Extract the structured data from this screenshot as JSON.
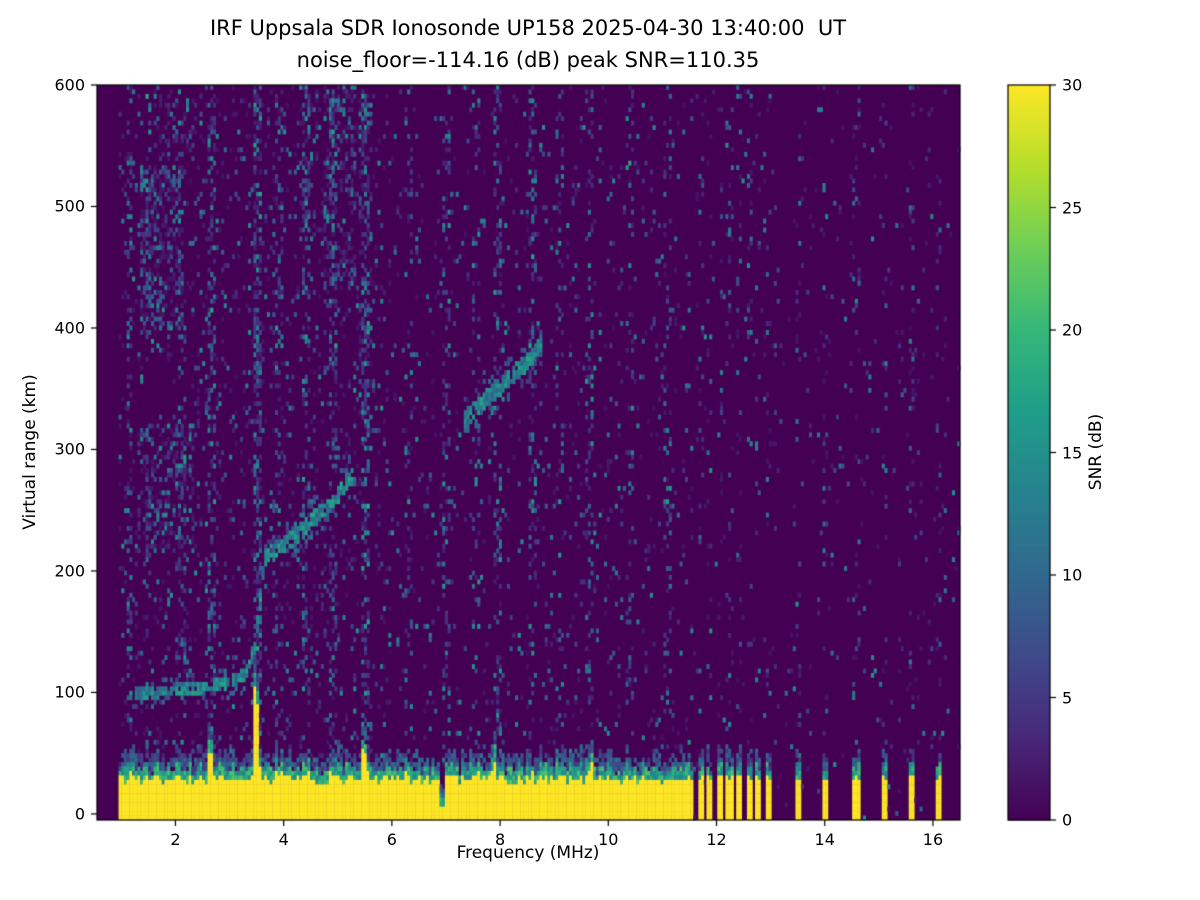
{
  "figure": {
    "station_label": "IRF Uppsala SDR Ionosonde",
    "station_id": "UP158",
    "timestamp_ut": "2025-04-30 13:40:00",
    "noise_floor_db": -114.16,
    "peak_snr_db": 110.35
  },
  "chart_data": {
    "type": "heatmap",
    "title_line1": "IRF Uppsala SDR Ionosonde UP158 2025-04-30 13:40:00  UT",
    "title_line2": "noise_floor=-114.16 (dB) peak SNR=110.35",
    "xlabel": "Frequency (MHz)",
    "ylabel": "Virtual range (km)",
    "xlim": [
      0.55,
      16.5
    ],
    "ylim": [
      -5,
      600
    ],
    "xticks": [
      2,
      4,
      6,
      8,
      10,
      12,
      14,
      16
    ],
    "yticks": [
      0,
      100,
      200,
      300,
      400,
      500,
      600
    ],
    "grid": false,
    "colorbar": {
      "label": "SNR (dB)",
      "ticks": [
        0,
        5,
        10,
        15,
        20,
        25,
        30
      ],
      "vmin": 0,
      "vmax": 30,
      "cmap": "viridis",
      "stops": [
        "#440154",
        "#482878",
        "#3e4a89",
        "#31688e",
        "#26828e",
        "#1f9e89",
        "#35b779",
        "#6ece58",
        "#b5de2b",
        "#fde725"
      ]
    },
    "features": {
      "ground_band": {
        "x_start": 0.95,
        "x_end": 11.55,
        "y_bottom": -5,
        "top_km_mean": 28,
        "fringe_km": 14
      },
      "band_spikes_mhz_km": [
        [
          2.65,
          55
        ],
        [
          3.5,
          100
        ],
        [
          5.5,
          48
        ],
        [
          7.9,
          42
        ],
        [
          9.65,
          45
        ]
      ],
      "band_gaps_mhz": [
        6.93
      ],
      "isolated_bars_mhz": [
        11.7,
        11.88,
        12.06,
        12.24,
        12.42,
        12.6,
        12.78,
        12.96,
        13.5,
        14.02,
        14.58,
        15.1,
        15.6,
        16.1
      ],
      "echo_traces": [
        {
          "name": "Es-trace",
          "thickness_km": 5,
          "points_mhz_km": [
            [
              1.25,
              100
            ],
            [
              1.8,
              101
            ],
            [
              2.3,
              103
            ],
            [
              2.8,
              106
            ],
            [
              3.1,
              110
            ],
            [
              3.3,
              116
            ],
            [
              3.45,
              132
            ],
            [
              3.52,
              155
            ],
            [
              3.58,
              178
            ],
            [
              3.62,
              200
            ]
          ]
        },
        {
          "name": "F-trace-1",
          "thickness_km": 7,
          "points_mhz_km": [
            [
              3.62,
              210
            ],
            [
              3.95,
              220
            ],
            [
              4.3,
              232
            ],
            [
              4.6,
              245
            ],
            [
              4.9,
              258
            ],
            [
              5.1,
              268
            ],
            [
              5.3,
              278
            ]
          ]
        },
        {
          "name": "F-trace-2",
          "thickness_km": 7,
          "points_mhz_km": [
            [
              7.35,
              326
            ],
            [
              7.6,
              336
            ],
            [
              7.9,
              348
            ],
            [
              8.2,
              360
            ],
            [
              8.5,
              372
            ],
            [
              8.75,
              386
            ]
          ]
        }
      ],
      "noise_columns_mhz": [
        [
          1.15,
          0.18
        ],
        [
          1.5,
          0.12
        ],
        [
          2.1,
          0.12
        ],
        [
          2.65,
          0.3
        ],
        [
          3.5,
          0.45
        ],
        [
          3.9,
          0.15
        ],
        [
          4.4,
          0.18
        ],
        [
          4.9,
          0.25
        ],
        [
          5.5,
          0.3
        ],
        [
          6.3,
          0.1
        ],
        [
          7.0,
          0.2
        ],
        [
          7.55,
          0.15
        ],
        [
          7.95,
          0.18
        ],
        [
          8.6,
          0.18
        ],
        [
          9.1,
          0.1
        ],
        [
          9.65,
          0.15
        ],
        [
          10.4,
          0.1
        ],
        [
          11.1,
          0.1
        ]
      ],
      "noise_patches": [
        {
          "x": [
            1.3,
            2.35
          ],
          "y": [
            215,
            320
          ],
          "density": 0.3
        },
        {
          "x": [
            1.35,
            2.15
          ],
          "y": [
            400,
            535
          ],
          "density": 0.35
        },
        {
          "x": [
            1.5,
            2.3
          ],
          "y": [
            540,
            600
          ],
          "density": 0.15
        },
        {
          "x": [
            4.75,
            5.35
          ],
          "y": [
            430,
            600
          ],
          "density": 0.22
        },
        {
          "x": [
            4.3,
            4.65
          ],
          "y": [
            470,
            600
          ],
          "density": 0.18
        },
        {
          "x": [
            5.4,
            5.65
          ],
          "y": [
            300,
            600
          ],
          "density": 0.15
        },
        {
          "x": [
            2.05,
            2.3
          ],
          "y": [
            100,
            210
          ],
          "density": 0.12
        }
      ],
      "base_noise": {
        "data_min_mhz": 0.95,
        "left_density": 0.09,
        "mid_density": 0.05,
        "right_density": 0.025,
        "left_max_mhz": 6.0,
        "mid_max_mhz": 11.55
      }
    }
  }
}
